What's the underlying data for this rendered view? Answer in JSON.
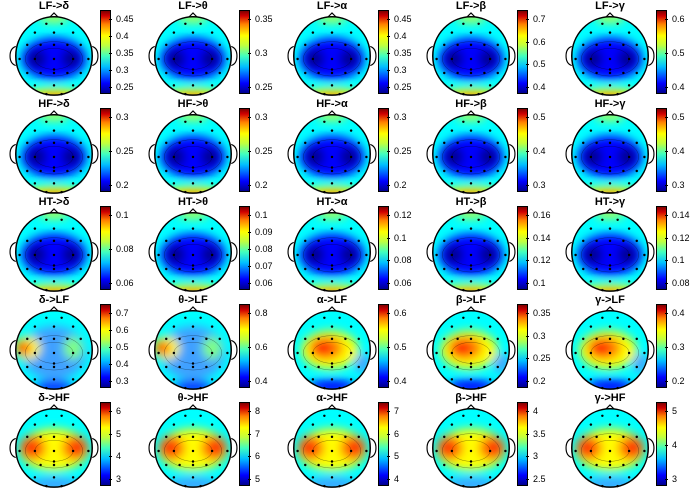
{
  "rows": [
    {
      "panels": [
        {
          "title": "LF->δ",
          "ticks": [
            "0.45",
            "0.4",
            "0.35",
            "0.3",
            "0.25"
          ],
          "pattern": "blue-center"
        },
        {
          "title": "LF->θ",
          "ticks": [
            "0.35",
            "0.3",
            "0.25"
          ],
          "pattern": "blue-center"
        },
        {
          "title": "LF->α",
          "ticks": [
            "0.45",
            "0.4",
            "0.35",
            "0.3",
            "0.25"
          ],
          "pattern": "blue-center"
        },
        {
          "title": "LF->β",
          "ticks": [
            "0.7",
            "0.6",
            "0.5",
            "0.4"
          ],
          "pattern": "blue-center"
        },
        {
          "title": "LF->γ",
          "ticks": [
            "0.6",
            "0.5",
            "0.4"
          ],
          "pattern": "blue-center"
        }
      ]
    },
    {
      "panels": [
        {
          "title": "HF->δ",
          "ticks": [
            "0.3",
            "0.25",
            "0.2"
          ],
          "pattern": "blue-center"
        },
        {
          "title": "HF->θ",
          "ticks": [
            "0.3",
            "0.25",
            "0.2"
          ],
          "pattern": "blue-center"
        },
        {
          "title": "HF->α",
          "ticks": [
            "0.3",
            "0.25",
            "0.2"
          ],
          "pattern": "blue-center"
        },
        {
          "title": "HF->β",
          "ticks": [
            "0.5",
            "0.4",
            "0.3"
          ],
          "pattern": "blue-center"
        },
        {
          "title": "HF->γ",
          "ticks": [
            "0.5",
            "0.4",
            "0.3"
          ],
          "pattern": "blue-center"
        }
      ]
    },
    {
      "panels": [
        {
          "title": "HT->δ",
          "ticks": [
            "0.1",
            "0.08",
            "0.06"
          ],
          "pattern": "blue-center"
        },
        {
          "title": "HT->θ",
          "ticks": [
            "0.1",
            "0.09",
            "0.08",
            "0.07",
            "0.06"
          ],
          "pattern": "blue-center"
        },
        {
          "title": "HT->α",
          "ticks": [
            "0.12",
            "0.1",
            "0.08",
            "0.06"
          ],
          "pattern": "blue-center"
        },
        {
          "title": "HT->β",
          "ticks": [
            "0.16",
            "0.14",
            "0.12",
            "0.1"
          ],
          "pattern": "blue-center"
        },
        {
          "title": "HT->γ",
          "ticks": [
            "0.14",
            "0.12",
            "0.1",
            "0.08"
          ],
          "pattern": "blue-center"
        }
      ]
    },
    {
      "panels": [
        {
          "title": "δ->LF",
          "ticks": [
            "0.7",
            "0.6",
            "0.5",
            "0.4",
            "0.3"
          ],
          "pattern": "red-left"
        },
        {
          "title": "θ->LF",
          "ticks": [
            "0.8",
            "0.6",
            "0.4"
          ],
          "pattern": "red-left"
        },
        {
          "title": "α->LF",
          "ticks": [
            "0.6",
            "0.5",
            "0.4"
          ],
          "pattern": "red-center"
        },
        {
          "title": "β->LF",
          "ticks": [
            "0.35",
            "0.3",
            "0.25",
            "0.2"
          ],
          "pattern": "red-center"
        },
        {
          "title": "γ->LF",
          "ticks": [
            "0.4",
            "0.3",
            "0.2"
          ],
          "pattern": "red-center"
        }
      ]
    },
    {
      "panels": [
        {
          "title": "δ->HF",
          "ticks": [
            "6",
            "5",
            "4",
            "3"
          ],
          "pattern": "red-bilateral"
        },
        {
          "title": "θ->HF",
          "ticks": [
            "8",
            "7",
            "6",
            "5"
          ],
          "pattern": "red-bilateral"
        },
        {
          "title": "α->HF",
          "ticks": [
            "7",
            "6",
            "5",
            "4"
          ],
          "pattern": "red-bilateral"
        },
        {
          "title": "β->HF",
          "ticks": [
            "4",
            "3.5",
            "3",
            "2.5"
          ],
          "pattern": "red-bilateral"
        },
        {
          "title": "γ->HF",
          "ticks": [
            "5",
            "4",
            "3"
          ],
          "pattern": "red-bilateral"
        }
      ]
    }
  ],
  "colors": {
    "dark_red": "#800000",
    "red": "#ff2000",
    "yellow": "#ffff00",
    "cyan": "#00ffff",
    "blue": "#0000ff",
    "dark_blue": "#00008f"
  }
}
